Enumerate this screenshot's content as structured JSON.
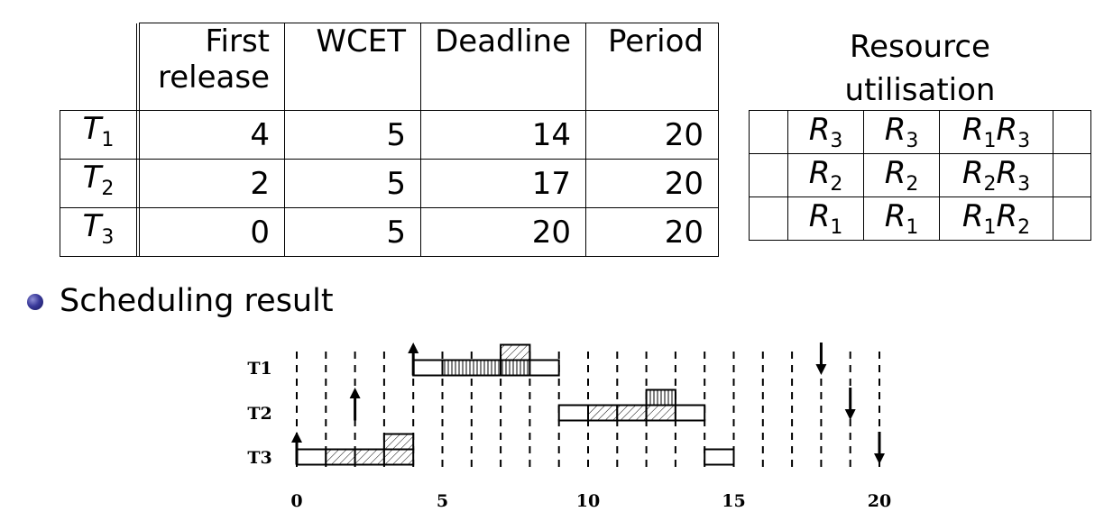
{
  "task_table": {
    "headers": {
      "first_release_1": "First",
      "first_release_2": "release",
      "wcet": "WCET",
      "deadline": "Deadline",
      "period": "Period"
    },
    "rows": [
      {
        "task": "T",
        "sub": "1",
        "first_release": "4",
        "wcet": "5",
        "deadline": "14",
        "period": "20"
      },
      {
        "task": "T",
        "sub": "2",
        "first_release": "2",
        "wcet": "5",
        "deadline": "17",
        "period": "20"
      },
      {
        "task": "T",
        "sub": "3",
        "first_release": "0",
        "wcet": "5",
        "deadline": "20",
        "period": "20"
      }
    ]
  },
  "resource_table": {
    "title_1": "Resource",
    "title_2": "utilisation",
    "rows": [
      [
        "",
        "R3",
        "R3",
        "R1R3",
        ""
      ],
      [
        "",
        "R2",
        "R2",
        "R2R3",
        ""
      ],
      [
        "",
        "R1",
        "R1",
        "R1R2",
        ""
      ]
    ]
  },
  "section_heading": "Scheduling result",
  "chart_data": {
    "type": "gantt",
    "x_range": [
      0,
      20
    ],
    "x_ticks": [
      "0",
      "5",
      "10",
      "15",
      "20"
    ],
    "tasks": [
      "T1",
      "T2",
      "T3"
    ],
    "segments": [
      {
        "task": "T1",
        "start": 4,
        "end": 5,
        "fill": "empty",
        "level": "low"
      },
      {
        "task": "T1",
        "start": 5,
        "end": 7,
        "fill": "vertical",
        "level": "low"
      },
      {
        "task": "T1",
        "start": 7,
        "end": 8,
        "fill": "vertical",
        "level": "low"
      },
      {
        "task": "T1",
        "start": 7,
        "end": 8,
        "fill": "diagonal",
        "level": "high"
      },
      {
        "task": "T1",
        "start": 8,
        "end": 9,
        "fill": "empty",
        "level": "low"
      },
      {
        "task": "T2",
        "start": 9,
        "end": 10,
        "fill": "empty",
        "level": "low"
      },
      {
        "task": "T2",
        "start": 10,
        "end": 11,
        "fill": "diagonal",
        "level": "low"
      },
      {
        "task": "T2",
        "start": 11,
        "end": 12,
        "fill": "diagonal",
        "level": "low"
      },
      {
        "task": "T2",
        "start": 12,
        "end": 13,
        "fill": "diagonal",
        "level": "low"
      },
      {
        "task": "T2",
        "start": 12,
        "end": 13,
        "fill": "vertical",
        "level": "high"
      },
      {
        "task": "T2",
        "start": 13,
        "end": 14,
        "fill": "empty",
        "level": "low"
      },
      {
        "task": "T3",
        "start": 0,
        "end": 1,
        "fill": "empty",
        "level": "low"
      },
      {
        "task": "T3",
        "start": 1,
        "end": 2,
        "fill": "diagonal",
        "level": "low"
      },
      {
        "task": "T3",
        "start": 2,
        "end": 3,
        "fill": "diagonal",
        "level": "low"
      },
      {
        "task": "T3",
        "start": 3,
        "end": 4,
        "fill": "diagonal",
        "level": "low"
      },
      {
        "task": "T3",
        "start": 3,
        "end": 4,
        "fill": "diagonal",
        "level": "high"
      },
      {
        "task": "T3",
        "start": 14,
        "end": 15,
        "fill": "empty",
        "level": "low"
      }
    ],
    "releases": [
      {
        "task": "T1",
        "time": 4
      },
      {
        "task": "T2",
        "time": 2
      },
      {
        "task": "T3",
        "time": 0
      }
    ],
    "deadlines": [
      {
        "task": "T1",
        "time": 18
      },
      {
        "task": "T2",
        "time": 19
      },
      {
        "task": "T3",
        "time": 20
      }
    ]
  }
}
